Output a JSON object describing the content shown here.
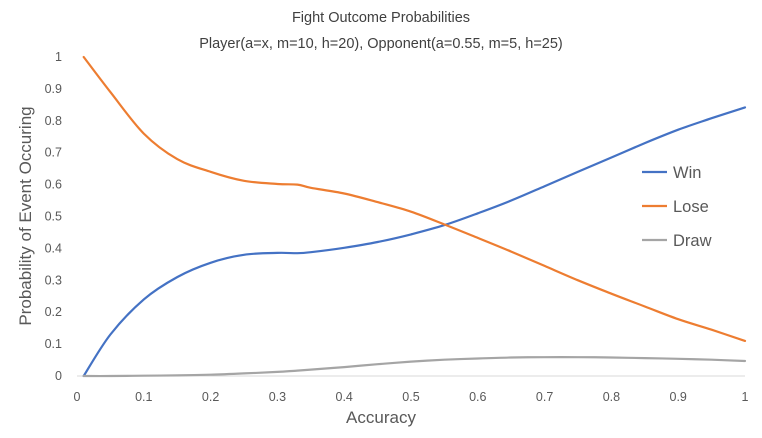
{
  "chart_data": {
    "type": "line",
    "title": "Fight Outcome Probabilities",
    "subtitle": "Player(a=x, m=10, h=20), Opponent(a=0.55, m=5, h=25)",
    "xlabel": "Accuracy",
    "ylabel": "Probability of Event Occuring",
    "xlim": [
      0,
      1
    ],
    "ylim": [
      0,
      1
    ],
    "xticks": [
      "0",
      "0.1",
      "0.2",
      "0.3",
      "0.4",
      "0.5",
      "0.6",
      "0.7",
      "0.8",
      "0.9",
      "1"
    ],
    "yticks": [
      "0",
      "0.1",
      "0.2",
      "0.3",
      "0.4",
      "0.5",
      "0.6",
      "0.7",
      "0.8",
      "0.9",
      "1"
    ],
    "grid": false,
    "legend": "right",
    "x": [
      0.01,
      0.05,
      0.1,
      0.15,
      0.2,
      0.25,
      0.3,
      0.33,
      0.35,
      0.4,
      0.45,
      0.5,
      0.55,
      0.6,
      0.65,
      0.7,
      0.75,
      0.8,
      0.85,
      0.9,
      0.95,
      1.0
    ],
    "series": [
      {
        "name": "Win",
        "color": "#4472C4",
        "values": [
          0.0,
          0.13,
          0.24,
          0.31,
          0.355,
          0.38,
          0.386,
          0.385,
          0.388,
          0.402,
          0.42,
          0.444,
          0.473,
          0.51,
          0.55,
          0.595,
          0.64,
          0.685,
          0.73,
          0.772,
          0.808,
          0.842
        ]
      },
      {
        "name": "Lose",
        "color": "#ED7D31",
        "values": [
          1.0,
          0.89,
          0.76,
          0.68,
          0.64,
          0.612,
          0.602,
          0.6,
          0.59,
          0.572,
          0.545,
          0.515,
          0.475,
          0.433,
          0.39,
          0.345,
          0.3,
          0.258,
          0.218,
          0.178,
          0.145,
          0.11
        ]
      },
      {
        "name": "Draw",
        "color": "#A5A5A5",
        "values": [
          0.0,
          0.0,
          0.001,
          0.002,
          0.004,
          0.008,
          0.013,
          0.017,
          0.02,
          0.028,
          0.037,
          0.045,
          0.051,
          0.055,
          0.058,
          0.059,
          0.059,
          0.058,
          0.056,
          0.054,
          0.051,
          0.047
        ]
      }
    ]
  }
}
